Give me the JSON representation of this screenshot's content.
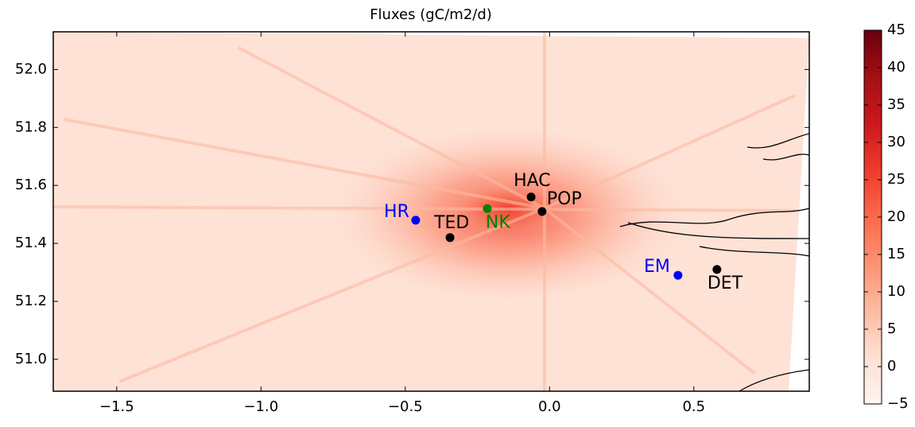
{
  "chart_data": {
    "type": "map",
    "title": "Fluxes (gC/m2/d)",
    "xlim": [
      -1.72,
      0.9
    ],
    "ylim": [
      50.89,
      52.13
    ],
    "xticks": [
      {
        "value": -1.5,
        "label": "−1.5"
      },
      {
        "value": -1.0,
        "label": "−1.0"
      },
      {
        "value": -0.5,
        "label": "−0.5"
      },
      {
        "value": 0.0,
        "label": "0.0"
      },
      0.5
    ],
    "yticks": [
      {
        "value": 51.0,
        "label": "51.0"
      },
      51.2,
      51.4,
      51.6,
      51.8,
      {
        "value": 52.0,
        "label": "52.0"
      }
    ],
    "colorbar": {
      "clim": [
        -5,
        45
      ],
      "ticks": [
        {
          "value": -5,
          "label": "−5"
        },
        0,
        5,
        10,
        15,
        20,
        25,
        30,
        35,
        40,
        45
      ],
      "colormap": [
        "#fff5f0",
        "#fee0d2",
        "#fcbba1",
        "#fc9272",
        "#fb6a4a",
        "#ef3b2c",
        "#cb181d",
        "#a50f15",
        "#67000d"
      ]
    },
    "points": [
      {
        "name": "HR",
        "x": -0.464,
        "y": 51.48,
        "color": "#0000ff"
      },
      {
        "name": "TED",
        "x": -0.345,
        "y": 51.42,
        "color": "#000000"
      },
      {
        "name": "NK",
        "x": -0.216,
        "y": 51.52,
        "color": "#008000"
      },
      {
        "name": "HAC",
        "x": -0.064,
        "y": 51.56,
        "color": "#000000"
      },
      {
        "name": "POP",
        "x": -0.026,
        "y": 51.51,
        "color": "#000000"
      },
      {
        "name": "EM",
        "x": 0.445,
        "y": 51.29,
        "color": "#0000ff"
      },
      {
        "name": "DET",
        "x": 0.58,
        "y": 51.31,
        "color": "#000000"
      }
    ]
  }
}
